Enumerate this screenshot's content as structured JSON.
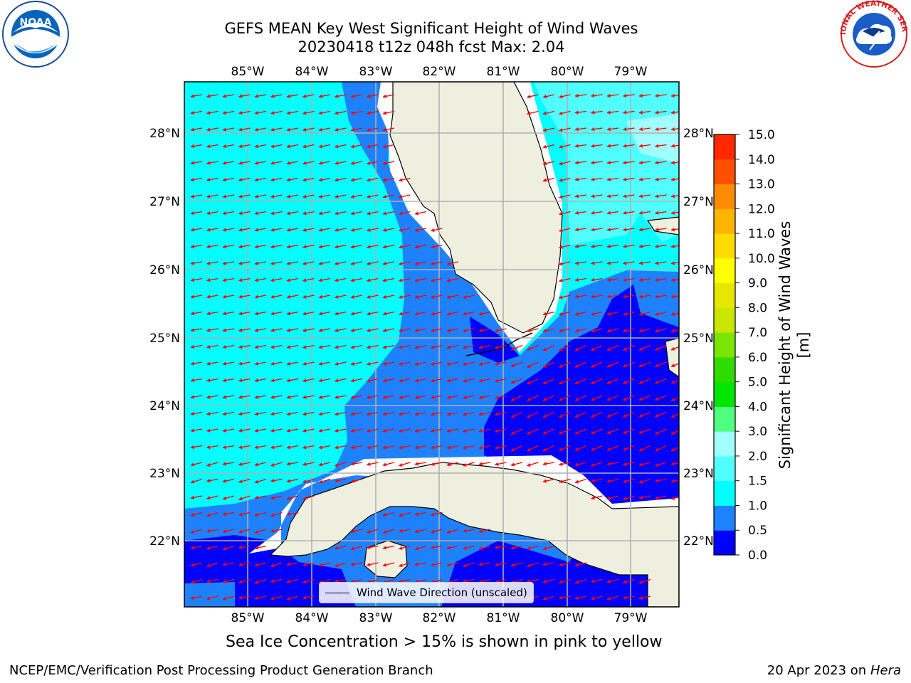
{
  "title_line1": "GEFS MEAN Key West Significant Height of Wind Waves",
  "title_line2": "20230418 t12z 048h fcst   Max: 2.04",
  "longitude_ticks": [
    "85°W",
    "84°W",
    "83°W",
    "82°W",
    "81°W",
    "80°W",
    "79°W"
  ],
  "latitude_ticks": [
    "28°N",
    "27°N",
    "26°N",
    "25°N",
    "24°N",
    "23°N",
    "22°N"
  ],
  "colorbar": {
    "label": "Significant Height of Wind Waves [m]",
    "ticks": [
      "15.0",
      "14.0",
      "13.0",
      "12.0",
      "11.0",
      "10.0",
      "9.0",
      "8.0",
      "7.0",
      "6.0",
      "5.0",
      "4.0",
      "3.0",
      "2.0",
      "1.5",
      "1.0",
      "0.5",
      "0.0"
    ],
    "levels": [
      0,
      0.5,
      1.0,
      1.5,
      2.0,
      3.0,
      4.0,
      5.0,
      6.0,
      7.0,
      8.0,
      9.0,
      10.0,
      11.0,
      12.0,
      13.0,
      14.0,
      15.0
    ],
    "colors": [
      "#0000ff",
      "#1e82ff",
      "#00ffff",
      "#50ffff",
      "#a0ffff",
      "#50ff80",
      "#00e600",
      "#30dc00",
      "#7ae600",
      "#c8e600",
      "#e6e600",
      "#ffff00",
      "#ffdc00",
      "#ffb400",
      "#ff8c00",
      "#ff5000",
      "#ff2800",
      "#ff0000"
    ]
  },
  "legend": {
    "label": "Wind Wave Direction (unscaled)"
  },
  "ice_note": "Sea Ice Concentration > 15% is shown in pink to yellow",
  "footer": {
    "left": "NCEP/EMC/Verification Post Processing Product Generation Branch",
    "date": "20 Apr 2023 on",
    "machine": "Hera"
  },
  "logos": {
    "noaa": "NOAA",
    "nws": "NATIONAL WEATHER SERVICE"
  },
  "colors": {
    "land": "#efefdf",
    "arrow": "#ff0000",
    "grid": "#b0b0b0"
  }
}
